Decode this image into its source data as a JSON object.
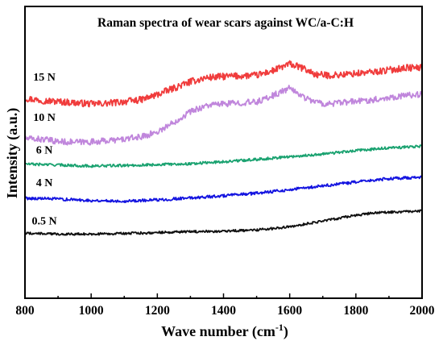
{
  "chart_data": {
    "type": "line",
    "title": "Raman spectra of wear scars against WC/a-C:H",
    "xlabel": "Wave number (cm",
    "xlabel_sup": "-1",
    "xlabel_end": ")",
    "ylabel": "Intensity (a.u.)",
    "xlim": [
      800,
      2000
    ],
    "ylim": [
      0,
      100
    ],
    "x_ticks": [
      "800",
      "1000",
      "1200",
      "1400",
      "1600",
      "1800",
      "2000"
    ],
    "y_ticks_labeled": false,
    "grid": false,
    "legend": "inline labels at left of each curve",
    "series": [
      {
        "name": "15 N",
        "color": "#f03c3c",
        "points": [
          [
            800,
            68.5
          ],
          [
            860,
            67.7
          ],
          [
            900,
            67.4
          ],
          [
            950,
            67.0
          ],
          [
            1000,
            66.6
          ],
          [
            1050,
            66.8
          ],
          [
            1100,
            67.4
          ],
          [
            1150,
            68.0
          ],
          [
            1200,
            69.8
          ],
          [
            1250,
            72.0
          ],
          [
            1300,
            74.2
          ],
          [
            1350,
            75.6
          ],
          [
            1400,
            76.0
          ],
          [
            1450,
            76.2
          ],
          [
            1500,
            76.4
          ],
          [
            1550,
            78.0
          ],
          [
            1600,
            80.3
          ],
          [
            1640,
            78.8
          ],
          [
            1680,
            76.6
          ],
          [
            1720,
            76.4
          ],
          [
            1760,
            76.6
          ],
          [
            1800,
            77.0
          ],
          [
            1850,
            77.5
          ],
          [
            1900,
            78.2
          ],
          [
            1950,
            79.0
          ],
          [
            2000,
            79.0
          ]
        ]
      },
      {
        "name": "10 N",
        "color": "#c086dc",
        "points": [
          [
            800,
            54.7
          ],
          [
            850,
            54.5
          ],
          [
            900,
            53.7
          ],
          [
            950,
            53.5
          ],
          [
            1000,
            53.6
          ],
          [
            1050,
            54.0
          ],
          [
            1100,
            54.5
          ],
          [
            1150,
            55.3
          ],
          [
            1200,
            57.0
          ],
          [
            1250,
            60.3
          ],
          [
            1300,
            64.0
          ],
          [
            1350,
            66.1
          ],
          [
            1400,
            66.6
          ],
          [
            1450,
            67.0
          ],
          [
            1500,
            67.2
          ],
          [
            1550,
            69.5
          ],
          [
            1600,
            72.0
          ],
          [
            1650,
            68.5
          ],
          [
            1700,
            66.6
          ],
          [
            1750,
            66.9
          ],
          [
            1800,
            67.5
          ],
          [
            1850,
            68.0
          ],
          [
            1900,
            68.8
          ],
          [
            1950,
            69.5
          ],
          [
            2000,
            69.9
          ]
        ]
      },
      {
        "name": "6 N",
        "color": "#1aa270",
        "points": [
          [
            800,
            46.0
          ],
          [
            900,
            45.7
          ],
          [
            1000,
            45.3
          ],
          [
            1100,
            45.5
          ],
          [
            1200,
            45.8
          ],
          [
            1300,
            46.1
          ],
          [
            1400,
            46.8
          ],
          [
            1500,
            47.6
          ],
          [
            1600,
            48.5
          ],
          [
            1700,
            49.4
          ],
          [
            1800,
            50.6
          ],
          [
            1900,
            51.5
          ],
          [
            2000,
            52.1
          ]
        ]
      },
      {
        "name": "4 N",
        "color": "#1414e0",
        "points": [
          [
            800,
            34.3
          ],
          [
            900,
            34.0
          ],
          [
            1000,
            33.5
          ],
          [
            1100,
            33.3
          ],
          [
            1200,
            33.7
          ],
          [
            1300,
            34.4
          ],
          [
            1400,
            35.1
          ],
          [
            1500,
            36.0
          ],
          [
            1600,
            37.2
          ],
          [
            1700,
            38.5
          ],
          [
            1800,
            39.8
          ],
          [
            1900,
            41.0
          ],
          [
            2000,
            41.5
          ]
        ]
      },
      {
        "name": "0.5 N",
        "color": "#101010",
        "points": [
          [
            800,
            22.3
          ],
          [
            900,
            22.0
          ],
          [
            1000,
            22.0
          ],
          [
            1100,
            22.2
          ],
          [
            1200,
            22.5
          ],
          [
            1300,
            22.8
          ],
          [
            1400,
            23.0
          ],
          [
            1500,
            23.4
          ],
          [
            1600,
            24.5
          ],
          [
            1700,
            26.5
          ],
          [
            1800,
            28.4
          ],
          [
            1850,
            29.2
          ],
          [
            1900,
            29.5
          ],
          [
            2000,
            29.9
          ]
        ]
      }
    ]
  }
}
